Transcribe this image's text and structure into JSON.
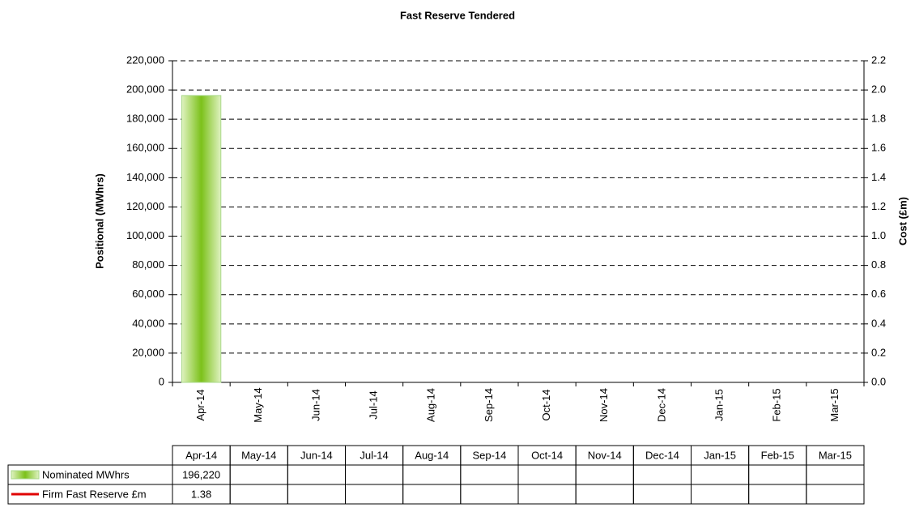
{
  "chart_data": {
    "type": "bar",
    "title": "Fast Reserve Tendered",
    "y_label": "Positional (MWhrs)",
    "y2_label": "Cost (£m)",
    "categories": [
      "Apr-14",
      "May-14",
      "Jun-14",
      "Jul-14",
      "Aug-14",
      "Sep-14",
      "Oct-14",
      "Nov-14",
      "Dec-14",
      "Jan-15",
      "Feb-15",
      "Mar-15"
    ],
    "series": [
      {
        "name": "Nominated MWhrs",
        "type": "bar",
        "color": "#7cc11a",
        "values": [
          196220,
          null,
          null,
          null,
          null,
          null,
          null,
          null,
          null,
          null,
          null,
          null
        ],
        "value_labels": [
          "196,220",
          null,
          null,
          null,
          null,
          null,
          null,
          null,
          null,
          null,
          null,
          null
        ]
      },
      {
        "name": "Firm Fast Reserve £m",
        "type": "line",
        "axis": "y2",
        "color": "#e00000",
        "values": [
          1.38,
          null,
          null,
          null,
          null,
          null,
          null,
          null,
          null,
          null,
          null,
          null
        ]
      }
    ],
    "ylim": [
      0,
      220000
    ],
    "yticks": [
      0,
      {
        "value": 20000,
        "label": "20,000"
      },
      {
        "value": 40000,
        "label": "40,000"
      },
      {
        "value": 60000,
        "label": "60,000"
      },
      {
        "value": 80000,
        "label": "80,000"
      },
      {
        "value": 100000,
        "label": "100,000"
      },
      {
        "value": 120000,
        "label": "120,000"
      },
      {
        "value": 140000,
        "label": "140,000"
      },
      {
        "value": 160000,
        "label": "160,000"
      },
      {
        "value": 180000,
        "label": "180,000"
      },
      {
        "value": 200000,
        "label": "200,000"
      },
      {
        "value": 220000,
        "label": "220,000"
      }
    ],
    "y2lim": [
      0,
      2.2
    ],
    "y2ticks": [
      {
        "value": 0,
        "label": "0.0"
      },
      0.2,
      0.4,
      0.6,
      0.8,
      {
        "value": 1,
        "label": "1.0"
      },
      1.2,
      1.4,
      1.6,
      1.8,
      {
        "value": 2,
        "label": "2.0"
      },
      2.2
    ],
    "grid": true
  }
}
